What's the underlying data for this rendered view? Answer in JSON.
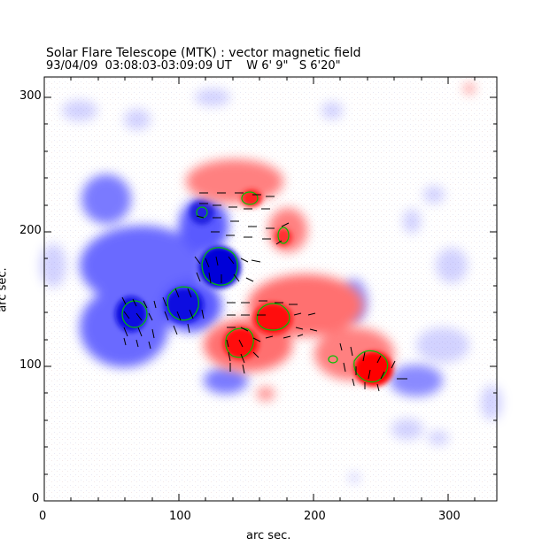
{
  "figure": {
    "title": "Solar Flare Telescope (MTK) : vector magnetic field",
    "subtitle": "93/04/09  03:08:03-03:09:09 UT    W 6' 9\"   S 6'20\"",
    "xlabel": "arc sec.",
    "ylabel": "arc sec.",
    "xticks": [
      "0",
      "100",
      "200",
      "300"
    ],
    "yticks": [
      "0",
      "100",
      "200",
      "300"
    ]
  },
  "colors": {
    "positive": "#ff0000",
    "negative": "#0000ff",
    "contour": "#00c000",
    "vector": "#000000"
  }
}
